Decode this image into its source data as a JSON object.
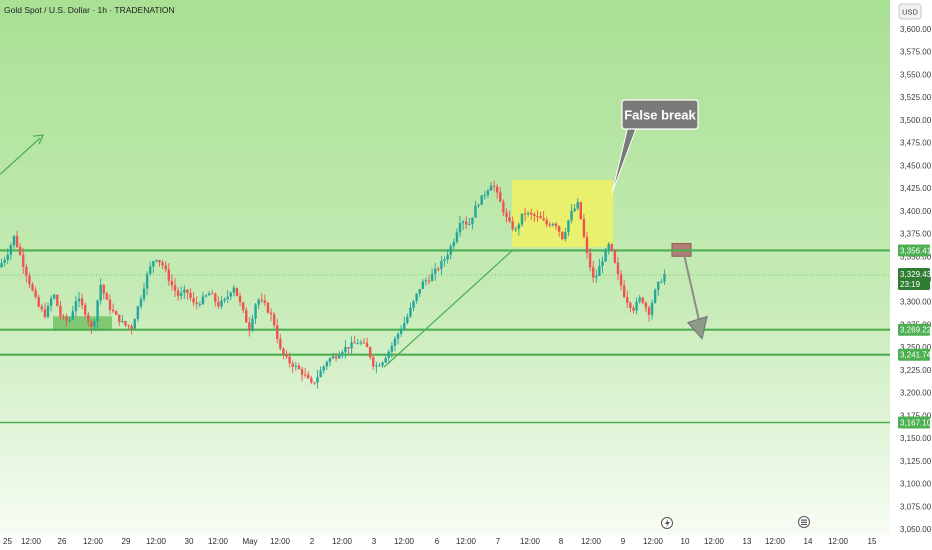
{
  "header": {
    "symbol": "Gold Spot / U.S. Dollar · 1h · TRADENATION",
    "currency": "USD"
  },
  "colors": {
    "background_top": "#a9e094",
    "background_bottom": "#f7fcf4",
    "level_line": "#4caf50",
    "up_candle": "#26a69a",
    "down_candle": "#ef5350",
    "zone_yellow": "#eaf06a",
    "zone_green": "#7cc66e",
    "callout": "#7a7a7a",
    "current_price": "#2e7d32"
  },
  "annotations": {
    "callout_text": "False break",
    "countdown": "23:19"
  },
  "chart_data": {
    "type": "candlestick",
    "symbol": "XAUUSD",
    "interval": "1h",
    "y_axis": {
      "range": [
        3050,
        3625
      ],
      "ticks": [
        "3,600.00",
        "3,575.00",
        "3,550.00",
        "3,525.00",
        "3,500.00",
        "3,475.00",
        "3,450.00",
        "3,425.00",
        "3,400.00",
        "3,375.00",
        "3,350.00",
        "3,325.00",
        "3,300.00",
        "3,275.00",
        "3,250.00",
        "3,225.00",
        "3,200.00",
        "3,175.00",
        "3,150.00",
        "3,125.00",
        "3,100.00",
        "3,075.00",
        "3,050.00"
      ],
      "tick_values": [
        3600,
        3575,
        3550,
        3525,
        3500,
        3475,
        3450,
        3425,
        3400,
        3375,
        3350,
        3325,
        3300,
        3275,
        3250,
        3225,
        3200,
        3175,
        3150,
        3125,
        3100,
        3075,
        3050
      ]
    },
    "x_axis": {
      "ticks": [
        "25",
        "12:00",
        "26",
        "12:00",
        "29",
        "12:00",
        "30",
        "12:00",
        "May",
        "12:00",
        "2",
        "12:00",
        "3",
        "12:00",
        "6",
        "12:00",
        "7",
        "12:00",
        "8",
        "12:00",
        "9",
        "12:00",
        "10",
        "12:00",
        "13",
        "12:00",
        "14",
        "12:00",
        "15"
      ]
    },
    "levels": [
      {
        "label": "3,356.41",
        "value": 3356.41
      },
      {
        "label": "3,269.22",
        "value": 3269.22
      },
      {
        "label": "3,241.74",
        "value": 3241.74
      },
      {
        "label": "3,167.10",
        "value": 3167.1
      }
    ],
    "current_price": {
      "label": "3,329.43",
      "value": 3329.43
    },
    "path": [
      3338,
      3350,
      3372,
      3345,
      3320,
      3296,
      3285,
      3310,
      3282,
      3278,
      3305,
      3290,
      3268,
      3320,
      3296,
      3284,
      3275,
      3272,
      3300,
      3330,
      3350,
      3340,
      3320,
      3306,
      3312,
      3296,
      3302,
      3310,
      3296,
      3302,
      3318,
      3294,
      3270,
      3304,
      3296,
      3282,
      3246,
      3234,
      3228,
      3220,
      3208,
      3222,
      3236,
      3240,
      3248,
      3252,
      3256,
      3250,
      3228,
      3235,
      3248,
      3265,
      3280,
      3300,
      3320,
      3326,
      3336,
      3348,
      3365,
      3392,
      3384,
      3406,
      3418,
      3432,
      3410,
      3388,
      3378,
      3398,
      3395,
      3392,
      3385,
      3388,
      3370,
      3396,
      3408,
      3356,
      3322,
      3345,
      3364,
      3330,
      3304,
      3292,
      3305,
      3288,
      3316,
      3330
    ],
    "zones": [
      {
        "name": "false-break-zone",
        "x_from": "7",
        "x_to": "8 12:00",
        "price_from": 3360,
        "price_to": 3434
      },
      {
        "name": "support-zone",
        "x_from": "26",
        "x_to": "29",
        "price_from": 3268,
        "price_to": 3284
      },
      {
        "name": "target-box",
        "x_from": "10",
        "x_to": "10",
        "price_from": 3350,
        "price_to": 3364
      }
    ],
    "trendlines": [
      {
        "from": {
          "x": "25",
          "price": 3440
        },
        "to": {
          "x": "25 12:00",
          "price": 3480
        }
      },
      {
        "from": {
          "x": "3",
          "price": 3228
        },
        "to": {
          "x": "7",
          "price": 3356
        }
      }
    ],
    "arrow": {
      "from_price": 3352,
      "to_price": 3266
    }
  }
}
